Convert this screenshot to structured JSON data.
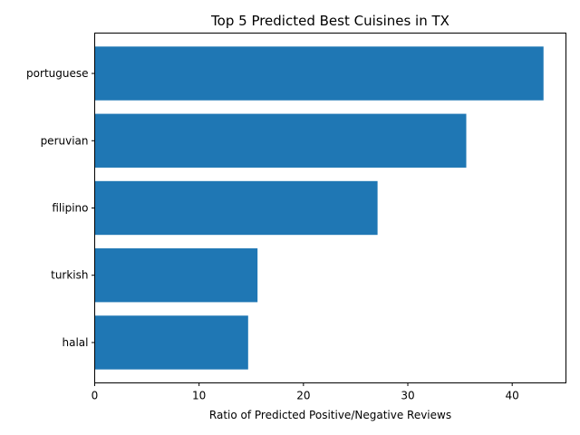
{
  "chart_data": {
    "type": "bar",
    "orientation": "horizontal",
    "title": "Top 5 Predicted Best Cuisines in TX",
    "xlabel": "Ratio of Predicted Positive/Negative Reviews",
    "ylabel": "",
    "categories": [
      "portuguese",
      "peruvian",
      "filipino",
      "turkish",
      "halal"
    ],
    "values": [
      43.0,
      35.6,
      27.1,
      15.6,
      14.7
    ],
    "xlim": [
      0,
      45.15
    ],
    "xticks": [
      0,
      10,
      20,
      30,
      40
    ],
    "grid": false,
    "bar_color": "#1f77b4"
  }
}
